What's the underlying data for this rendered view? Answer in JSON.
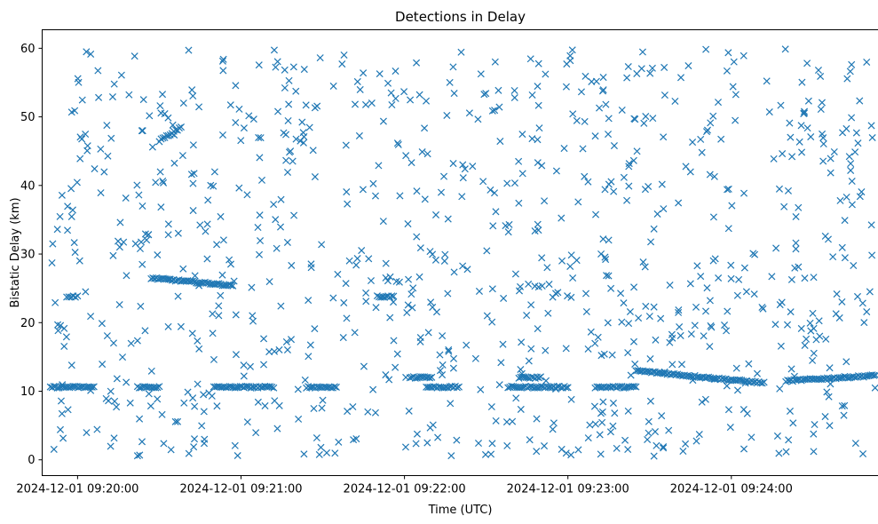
{
  "chart_data": {
    "type": "scatter",
    "title": "Detections in Delay",
    "xlabel": "Time (UTC)",
    "ylabel": "Bistatic Delay (km)",
    "x_range": [
      "2024-12-01 09:19:47",
      "2024-12-01 09:24:54"
    ],
    "ylim": [
      -2.3,
      62.7
    ],
    "x_ticks": [
      "2024-12-01 09:20:00",
      "2024-12-01 09:21:00",
      "2024-12-01 09:22:00",
      "2024-12-01 09:23:00",
      "2024-12-01 09:24:00"
    ],
    "y_ticks": [
      0,
      10,
      20,
      30,
      40,
      50,
      60
    ],
    "marker": "x",
    "grid": false,
    "color": "#1f77b4",
    "series": [
      {
        "name": "",
        "generator": "seeded-random",
        "clutter_points": 900,
        "clutter_y_range": [
          0.5,
          60
        ],
        "tracks": [
          {
            "from": "2024-12-01 09:19:50",
            "to": "2024-12-01 09:20:06",
            "delay_from": 10.6,
            "delay_to": 10.6
          },
          {
            "from": "2024-12-01 09:20:22",
            "to": "2024-12-01 09:20:30",
            "delay_from": 10.6,
            "delay_to": 10.6
          },
          {
            "from": "2024-12-01 09:20:50",
            "to": "2024-12-01 09:21:12",
            "delay_from": 10.6,
            "delay_to": 10.6
          },
          {
            "from": "2024-12-01 09:21:24",
            "to": "2024-12-01 09:21:35",
            "delay_from": 10.6,
            "delay_to": 10.6
          },
          {
            "from": "2024-12-01 09:22:08",
            "to": "2024-12-01 09:22:20",
            "delay_from": 10.6,
            "delay_to": 10.6
          },
          {
            "from": "2024-12-01 09:22:38",
            "to": "2024-12-01 09:23:00",
            "delay_from": 10.6,
            "delay_to": 10.6
          },
          {
            "from": "2024-12-01 09:23:10",
            "to": "2024-12-01 09:23:25",
            "delay_from": 10.6,
            "delay_to": 10.6
          },
          {
            "from": "2024-12-01 09:23:25",
            "to": "2024-12-01 09:24:12",
            "delay_from": 13.0,
            "delay_to": 11.2
          },
          {
            "from": "2024-12-01 09:24:20",
            "to": "2024-12-01 09:24:53",
            "delay_from": 11.5,
            "delay_to": 12.3
          },
          {
            "from": "2024-12-01 09:20:27",
            "to": "2024-12-01 09:20:57",
            "delay_from": 26.5,
            "delay_to": 25.4
          },
          {
            "from": "2024-12-01 09:20:30",
            "to": "2024-12-01 09:20:38",
            "delay_from": 46.5,
            "delay_to": 48.5
          },
          {
            "from": "2024-12-01 09:19:56",
            "to": "2024-12-01 09:20:00",
            "delay_from": 23.8,
            "delay_to": 23.8
          },
          {
            "from": "2024-12-01 09:21:50",
            "to": "2024-12-01 09:21:56",
            "delay_from": 23.8,
            "delay_to": 23.8
          },
          {
            "from": "2024-12-01 09:22:02",
            "to": "2024-12-01 09:22:10",
            "delay_from": 12.0,
            "delay_to": 12.0
          },
          {
            "from": "2024-12-01 09:22:42",
            "to": "2024-12-01 09:22:50",
            "delay_from": 12.0,
            "delay_to": 12.0
          }
        ]
      }
    ]
  }
}
